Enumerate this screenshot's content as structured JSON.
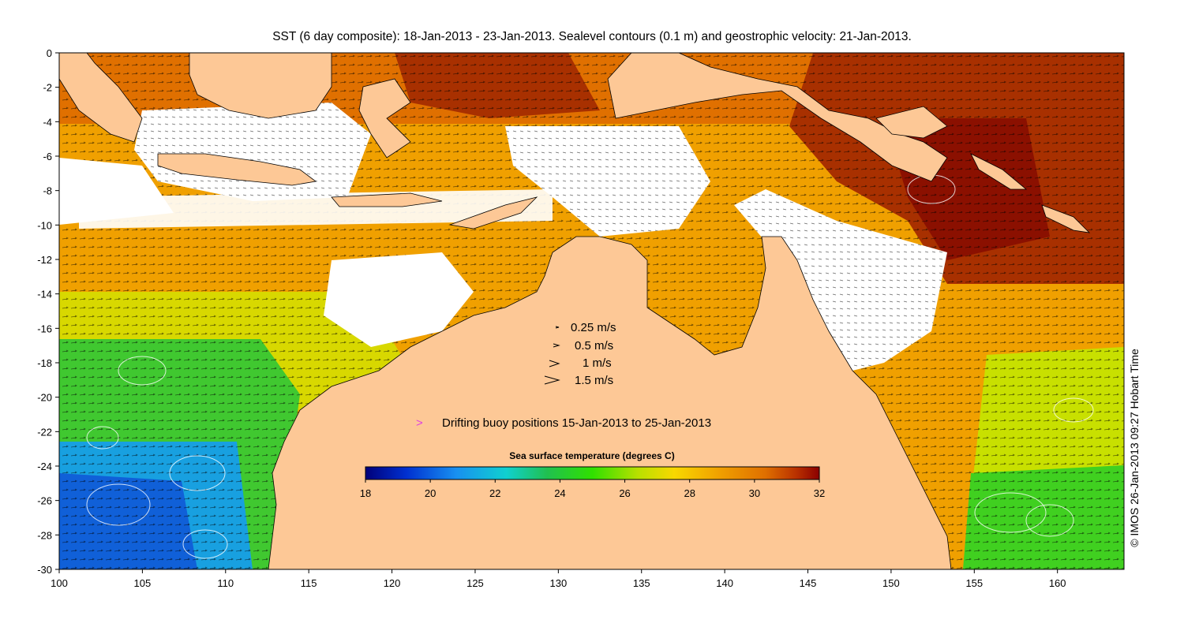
{
  "title": "SST (6 day composite): 18-Jan-2013 - 23-Jan-2013. Sealevel contours (0.1 m) and geostrophic velocity: 21-Jan-2013.",
  "credit": "© IMOS 26-Jan-2013 09:27 Hobart Time",
  "chart_data": {
    "type": "heatmap",
    "title": "SST (6 day composite): 18-Jan-2013 - 23-Jan-2013. Sealevel contours (0.1 m) and geostrophic velocity: 21-Jan-2013.",
    "x_ticks": [
      100,
      105,
      110,
      115,
      120,
      125,
      130,
      135,
      140,
      145,
      150,
      155,
      160
    ],
    "y_ticks": [
      0,
      -2,
      -4,
      -6,
      -8,
      -10,
      -12,
      -14,
      -16,
      -18,
      -20,
      -22,
      -24,
      -26,
      -28,
      -30
    ],
    "xlim": [
      100,
      164
    ],
    "ylim": [
      -30,
      0
    ],
    "colorbar": {
      "label": "Sea surface temperature (degrees C)",
      "ticks": [
        18,
        20,
        22,
        24,
        26,
        28,
        30,
        32
      ],
      "range": [
        18,
        32
      ]
    },
    "velocity_legend": [
      "0.25 m/s",
      "0.5 m/s",
      "1 m/s",
      "1.5 m/s"
    ],
    "buoy_legend": {
      "marker": ">",
      "label": "Drifting buoy positions 15-Jan-2013 to 25-Jan-2013",
      "color": "#e040e0"
    }
  },
  "colors": {
    "land": "#fdc896",
    "buoy": "#e040e0",
    "colormap": [
      "#00007a",
      "#0030d0",
      "#1890f0",
      "#10d0d0",
      "#20c050",
      "#30e000",
      "#b8e000",
      "#f8d800",
      "#f0a000",
      "#e07000",
      "#b83000",
      "#8b0000"
    ]
  }
}
